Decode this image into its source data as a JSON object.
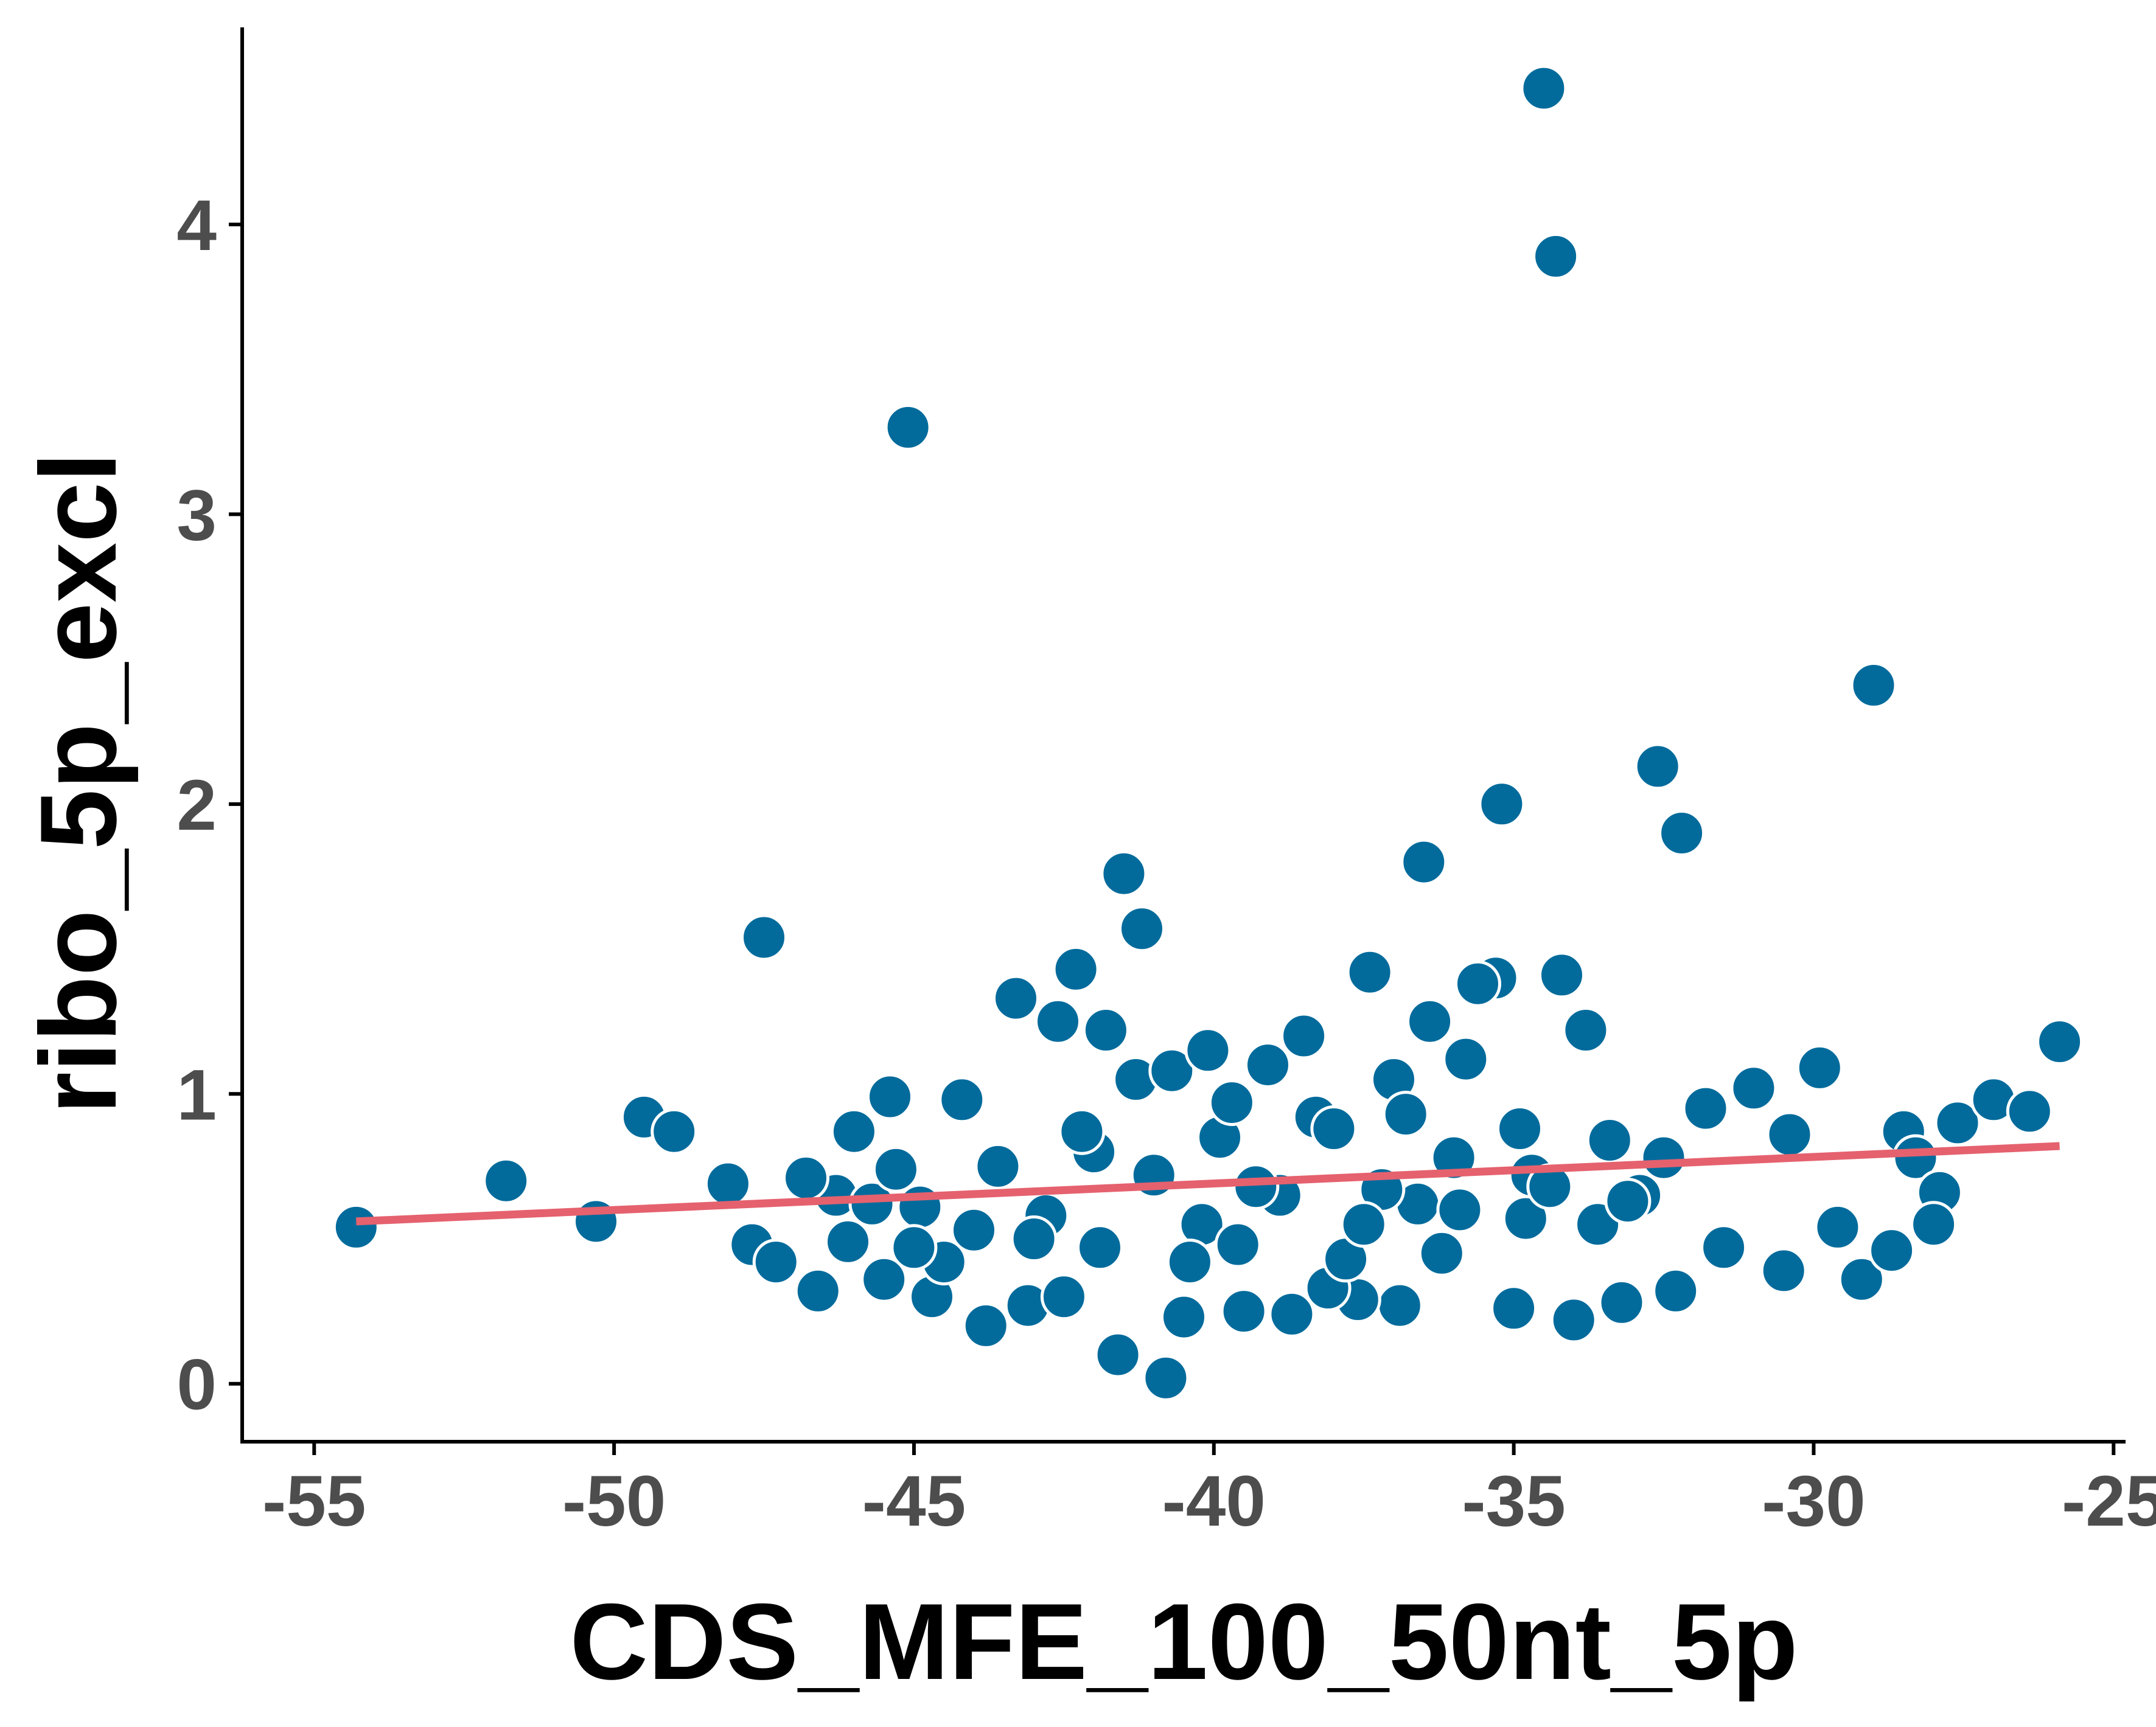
{
  "chart_data": {
    "type": "scatter",
    "xlabel": "CDS_MFE_100_50nt_5p",
    "ylabel": "ribo_5p_excl",
    "xlim": [
      -56.2,
      -24.8
    ],
    "ylim": [
      -0.2,
      4.68
    ],
    "x_ticks": [
      -55,
      -50,
      -45,
      -40,
      -35,
      -30,
      -25
    ],
    "x_tick_labels": [
      "-55",
      "-50",
      "-45",
      "-40",
      "-35",
      "-30",
      "-25"
    ],
    "y_ticks": [
      0,
      1,
      2,
      3,
      4
    ],
    "y_tick_labels": [
      "0",
      "1",
      "2",
      "3",
      "4"
    ],
    "grid": false,
    "legend": "none",
    "point_color": "#036b9c",
    "point_edge_color": "#ffffff",
    "fit_color": "#e5616e",
    "trend_line": {
      "x": [
        -54.3,
        -25.9
      ],
      "y": [
        0.56,
        0.82
      ]
    },
    "series": [
      {
        "x": [
          -34.5,
          -34.3,
          -45.1,
          -29.0,
          -35.2,
          -32.6,
          -32.2,
          -36.5,
          -41.5,
          -41.2,
          -47.5,
          -42.3,
          -37.4,
          -35.3,
          -34.2,
          -33.8,
          -25.9,
          -54.3,
          -51.8,
          -50.3,
          -49.5,
          -49.0,
          -48.1,
          -47.7,
          -47.3,
          -46.6,
          -46.3,
          -46.0,
          -45.4,
          -40.8,
          -41.6,
          -31.0,
          -29.9,
          -30.4,
          -30.5,
          -28.5,
          -28.3,
          -27.9,
          -27.6,
          -27.0,
          -26.4,
          -29.6,
          -29.2,
          -28.7,
          -28.0,
          -32.3,
          -31.8,
          -31.5,
          -45.5,
          -44.7,
          -43.8,
          -43.1,
          -42.5,
          -38.7,
          -35.0,
          -34.0,
          -33.2,
          -36.9,
          -39.5,
          -40.5,
          -37.6,
          -38.1,
          -43.6,
          -42.0,
          -39.9,
          -36.0,
          -34.7,
          -38.3,
          -44.2,
          -46.1,
          -32.9,
          -33.6,
          -41.3,
          -40.7,
          -39.1,
          -37.0,
          -35.8,
          -44.9,
          -42.8,
          -40.2,
          -38.9,
          -36.6,
          -34.8,
          -42.6,
          -43.3,
          -41.8,
          -40.1,
          -38.5,
          -36.4,
          -35.6,
          -37.8,
          -39.6,
          -44.5,
          -45.7,
          -46.8,
          -41.0,
          -39.3,
          -37.2,
          -35.9,
          -34.4,
          -33.1,
          -32.5,
          -43.0,
          -44.0,
          -45.0,
          -36.2,
          -41.9,
          -40.4,
          -38.0,
          -36.8,
          -34.9,
          -33.4,
          -42.2,
          -45.3,
          -39.7,
          -37.5
        ],
        "y": [
          4.47,
          3.89,
          3.3,
          2.41,
          2.0,
          2.13,
          1.9,
          1.8,
          1.76,
          1.57,
          1.54,
          1.43,
          1.42,
          1.4,
          1.41,
          1.22,
          1.18,
          0.54,
          0.7,
          0.56,
          0.92,
          0.87,
          0.69,
          0.48,
          0.42,
          0.32,
          0.65,
          0.87,
          0.99,
          0.02,
          0.1,
          1.02,
          1.09,
          0.86,
          0.39,
          0.87,
          0.78,
          0.66,
          0.9,
          0.98,
          0.94,
          0.54,
          0.36,
          0.46,
          0.55,
          0.32,
          0.95,
          0.47,
          0.36,
          0.3,
          0.2,
          0.27,
          0.3,
          0.24,
          0.26,
          0.22,
          0.28,
          0.27,
          0.25,
          0.23,
          0.29,
          0.33,
          0.75,
          0.8,
          0.85,
          0.78,
          0.72,
          0.92,
          0.98,
          0.49,
          0.65,
          0.55,
          1.05,
          1.08,
          1.1,
          1.05,
          1.12,
          0.61,
          0.58,
          0.55,
          0.65,
          0.62,
          0.57,
          1.25,
          1.33,
          1.22,
          1.15,
          1.2,
          1.25,
          1.38,
          0.43,
          0.48,
          0.42,
          0.62,
          0.71,
          0.72,
          0.68,
          0.67,
          0.6,
          0.68,
          0.63,
          0.78,
          0.5,
          0.53,
          0.47,
          0.45,
          0.47,
          0.42,
          0.88,
          0.93,
          0.88,
          0.84,
          0.87,
          0.74,
          0.97,
          0.55
        ]
      }
    ]
  }
}
